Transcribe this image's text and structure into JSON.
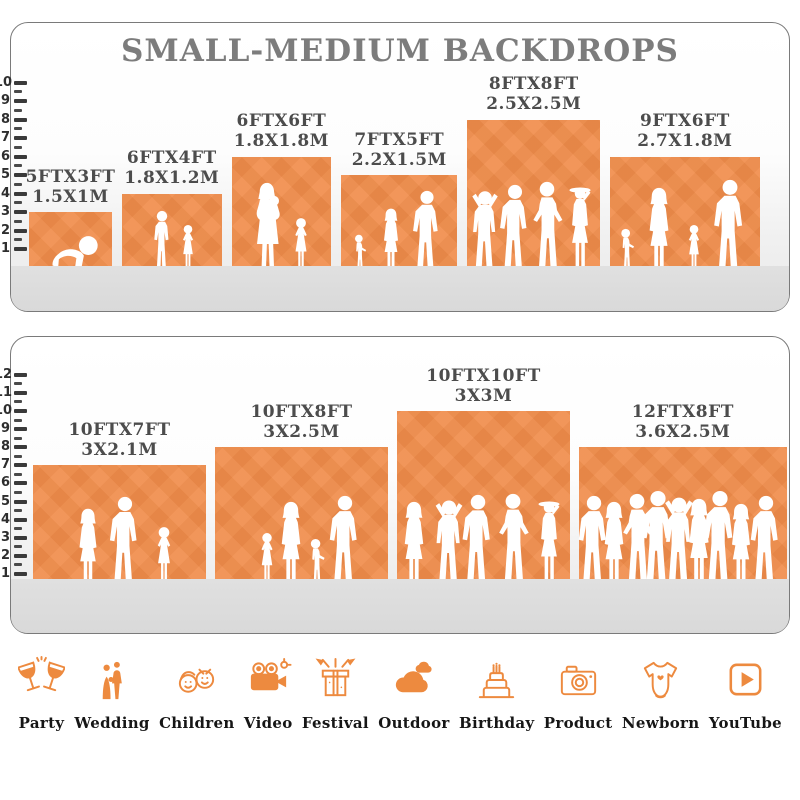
{
  "chart_data": {
    "type": "bar",
    "title": "SMALL-MEDIUM BACKDROPS",
    "unit_note": "ruler in feet",
    "panels": [
      {
        "name": "small-medium-top",
        "axis_max": 10,
        "bars": [
          {
            "label": "5FTX3FT",
            "label_metric": "1.5X1M",
            "width_ft": 5,
            "height_ft": 3,
            "figures": [
              {
                "type": "baby-crawl",
                "h": 0.72,
                "x": 0.52
              }
            ]
          },
          {
            "label": "6FTX4FT",
            "label_metric": "1.8X1.2M",
            "width_ft": 6,
            "height_ft": 4,
            "figures": [
              {
                "type": "boy",
                "h": 0.85,
                "x": 0.4
              },
              {
                "type": "girl",
                "h": 0.66,
                "x": 0.66
              }
            ]
          },
          {
            "label": "6FTX6FT",
            "label_metric": "1.8X1.8M",
            "width_ft": 6,
            "height_ft": 6,
            "figures": [
              {
                "type": "woman-baby",
                "h": 0.82,
                "x": 0.35
              },
              {
                "type": "girl",
                "h": 0.5,
                "x": 0.7
              }
            ]
          },
          {
            "label": "7FTX5FT",
            "label_metric": "2.2X1.5M",
            "width_ft": 7,
            "height_ft": 5,
            "figures": [
              {
                "type": "toddler",
                "h": 0.42,
                "x": 0.16
              },
              {
                "type": "woman",
                "h": 0.7,
                "x": 0.43
              },
              {
                "type": "man",
                "h": 0.9,
                "x": 0.74
              }
            ]
          },
          {
            "label": "8FTX8FT",
            "label_metric": "2.5X2.5M",
            "width_ft": 8,
            "height_ft": 8,
            "figures": [
              {
                "type": "man-armsup",
                "h": 0.58,
                "x": 0.13
              },
              {
                "type": "man",
                "h": 0.6,
                "x": 0.36
              },
              {
                "type": "man-akimbo",
                "h": 0.62,
                "x": 0.6
              },
              {
                "type": "woman-hat",
                "h": 0.6,
                "x": 0.85
              }
            ]
          },
          {
            "label": "9FTX6FT",
            "label_metric": "2.7X1.8M",
            "width_ft": 9,
            "height_ft": 6,
            "figures": [
              {
                "type": "toddler",
                "h": 0.4,
                "x": 0.11
              },
              {
                "type": "woman",
                "h": 0.78,
                "x": 0.33
              },
              {
                "type": "girl",
                "h": 0.44,
                "x": 0.56
              },
              {
                "type": "man",
                "h": 0.85,
                "x": 0.8
              }
            ]
          }
        ]
      },
      {
        "name": "small-medium-bottom",
        "axis_max": 12,
        "bars": [
          {
            "label": "10FTX7FT",
            "label_metric": "3X2.1M",
            "width_ft": 10,
            "height_ft": 7,
            "figures": [
              {
                "type": "woman",
                "h": 0.68,
                "x": 0.32
              },
              {
                "type": "man",
                "h": 0.78,
                "x": 0.53
              },
              {
                "type": "girl",
                "h": 0.52,
                "x": 0.76
              }
            ]
          },
          {
            "label": "10FTX8FT",
            "label_metric": "3X2.5M",
            "width_ft": 10,
            "height_ft": 8,
            "figures": [
              {
                "type": "girl",
                "h": 0.4,
                "x": 0.3
              },
              {
                "type": "woman",
                "h": 0.64,
                "x": 0.44
              },
              {
                "type": "toddler",
                "h": 0.36,
                "x": 0.59
              },
              {
                "type": "man",
                "h": 0.68,
                "x": 0.75
              }
            ]
          },
          {
            "label": "10FTX10FT",
            "label_metric": "3X3M",
            "width_ft": 10,
            "height_ft": 10,
            "figures": [
              {
                "type": "woman",
                "h": 0.5,
                "x": 0.1
              },
              {
                "type": "man-armsup",
                "h": 0.53,
                "x": 0.3
              },
              {
                "type": "man",
                "h": 0.54,
                "x": 0.47
              },
              {
                "type": "man-akimbo",
                "h": 0.55,
                "x": 0.67
              },
              {
                "type": "woman-hat",
                "h": 0.52,
                "x": 0.88
              }
            ]
          },
          {
            "label": "12FTX8FT",
            "label_metric": "3.6X2.5M",
            "width_ft": 12,
            "height_ft": 8,
            "figures": [
              {
                "type": "man",
                "h": 0.68,
                "x": 0.07
              },
              {
                "type": "woman",
                "h": 0.64,
                "x": 0.17
              },
              {
                "type": "man-akimbo",
                "h": 0.7,
                "x": 0.28
              },
              {
                "type": "man",
                "h": 0.72,
                "x": 0.38
              },
              {
                "type": "man-armsup",
                "h": 0.7,
                "x": 0.48
              },
              {
                "type": "woman",
                "h": 0.66,
                "x": 0.58
              },
              {
                "type": "man",
                "h": 0.72,
                "x": 0.68
              },
              {
                "type": "woman",
                "h": 0.62,
                "x": 0.78
              },
              {
                "type": "man",
                "h": 0.68,
                "x": 0.9
              }
            ]
          }
        ]
      }
    ]
  },
  "categories": [
    {
      "label": "Party",
      "icon": "party-icon"
    },
    {
      "label": "Wedding",
      "icon": "wedding-icon"
    },
    {
      "label": "Children",
      "icon": "children-icon"
    },
    {
      "label": "Video",
      "icon": "video-icon"
    },
    {
      "label": "Festival",
      "icon": "festival-icon"
    },
    {
      "label": "Outdoor",
      "icon": "outdoor-icon"
    },
    {
      "label": "Birthday",
      "icon": "birthday-icon"
    },
    {
      "label": "Product",
      "icon": "product-icon"
    },
    {
      "label": "Newborn",
      "icon": "newborn-icon"
    },
    {
      "label": "YouTube",
      "icon": "youtube-icon"
    }
  ],
  "colors": {
    "orange": "#F08C4A",
    "icon_orange": "#ED8A3F",
    "title_gray": "#7C7C7C",
    "label_gray": "#4C4C4C",
    "panel_border": "#7A7A7A",
    "floor_gray": "#DCDCDC"
  }
}
